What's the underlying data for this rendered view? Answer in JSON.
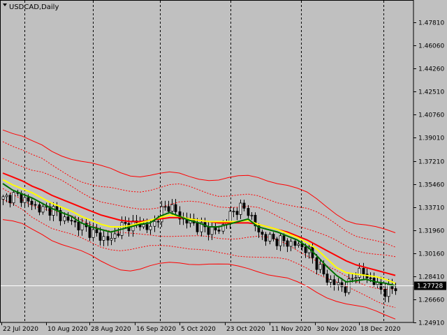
{
  "chart_data": {
    "type": "candlestick",
    "title": "USDCAD,Daily",
    "symbol": "USDCAD",
    "timeframe": "Daily",
    "current_price": 1.27728,
    "current_price_label": "1.27728",
    "y_range": [
      1.2491,
      1.495
    ],
    "y_ticks": [
      "1.47810",
      "1.46060",
      "1.44260",
      "1.42510",
      "1.40760",
      "1.39010",
      "1.37210",
      "1.35460",
      "1.33710",
      "1.31960",
      "1.30160",
      "1.28410",
      "1.26660",
      "1.24910"
    ],
    "x_labels": [
      "22 Jul 2020",
      "10 Aug 2020",
      "28 Aug 2020",
      "16 Sep 2020",
      "5 Oct 2020",
      "23 Oct 2020",
      "11 Nov 2020",
      "30 Nov 2020",
      "18 Dec 2020"
    ],
    "grid": "off",
    "period_separators": true,
    "colors": {
      "background": "#c0c0c0",
      "candle_up": "#ffffff",
      "candle_down": "#000000",
      "ma_fast": "#007000",
      "ma_mid": "#ffff00",
      "ma_slow": "#ff0000",
      "envelopes": "#ff0000",
      "price_line": "#ffffff",
      "price_box": "#000000"
    },
    "series": [
      {
        "name": "ma_fast",
        "values": [
          1.355,
          1.35,
          1.347,
          1.344,
          1.34,
          1.336,
          1.333,
          1.33,
          1.325,
          1.322,
          1.32,
          1.318,
          1.32,
          1.322,
          1.324,
          1.325,
          1.33,
          1.333,
          1.33,
          1.327,
          1.325,
          1.322,
          1.322,
          1.324,
          1.326,
          1.328,
          1.322,
          1.32,
          1.318,
          1.315,
          1.312,
          1.307,
          1.3,
          1.292,
          1.285,
          1.28,
          1.281,
          1.282,
          1.28,
          1.279,
          1.277
        ]
      },
      {
        "name": "ma_mid",
        "values": [
          1.358,
          1.354,
          1.351,
          1.348,
          1.344,
          1.34,
          1.337,
          1.334,
          1.33,
          1.327,
          1.324,
          1.322,
          1.322,
          1.323,
          1.325,
          1.327,
          1.329,
          1.331,
          1.33,
          1.328,
          1.327,
          1.326,
          1.326,
          1.326,
          1.326,
          1.327,
          1.324,
          1.322,
          1.32,
          1.317,
          1.314,
          1.31,
          1.305,
          1.298,
          1.291,
          1.287,
          1.286,
          1.285,
          1.284,
          1.282,
          1.279
        ]
      },
      {
        "name": "ma_slow",
        "values": [
          1.363,
          1.36,
          1.357,
          1.353,
          1.35,
          1.346,
          1.343,
          1.34,
          1.337,
          1.334,
          1.331,
          1.329,
          1.327,
          1.326,
          1.326,
          1.327,
          1.328,
          1.329,
          1.329,
          1.328,
          1.327,
          1.326,
          1.325,
          1.325,
          1.325,
          1.325,
          1.324,
          1.322,
          1.32,
          1.318,
          1.315,
          1.312,
          1.308,
          1.304,
          1.3,
          1.296,
          1.293,
          1.291,
          1.289,
          1.287,
          1.285
        ]
      },
      {
        "name": "close",
        "values": [
          1.343,
          1.346,
          1.344,
          1.339,
          1.335,
          1.336,
          1.329,
          1.326,
          1.322,
          1.318,
          1.314,
          1.312,
          1.322,
          1.324,
          1.324,
          1.32,
          1.333,
          1.339,
          1.329,
          1.326,
          1.322,
          1.32,
          1.319,
          1.33,
          1.337,
          1.334,
          1.318,
          1.313,
          1.312,
          1.31,
          1.308,
          1.305,
          1.293,
          1.282,
          1.278,
          1.275,
          1.288,
          1.285,
          1.278,
          1.272,
          1.277
        ]
      }
    ],
    "envelope_offsets_pct": [
      -2.6,
      -1.7,
      -0.85,
      0.85,
      1.7,
      2.6
    ]
  }
}
